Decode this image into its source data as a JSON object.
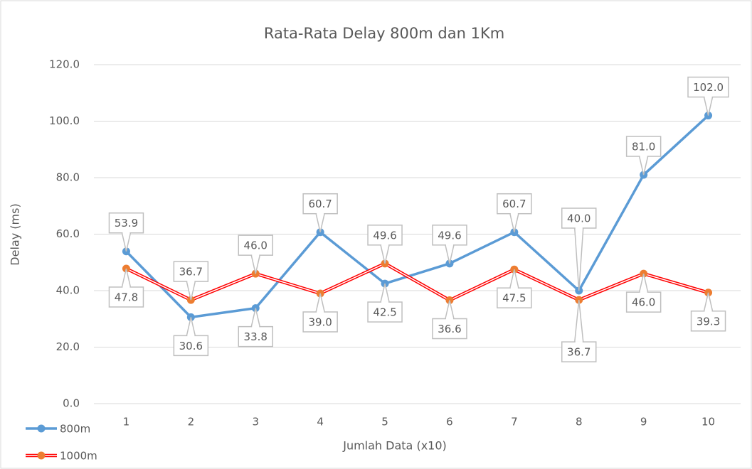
{
  "chart_data": {
    "type": "line",
    "title": "Rata-Rata Delay 800m dan 1Km",
    "x_label": "Jumlah Data (x10)",
    "y_label": "Delay (ms)",
    "categories": [
      "1",
      "2",
      "3",
      "4",
      "5",
      "6",
      "7",
      "8",
      "9",
      "10"
    ],
    "series": [
      {
        "name": "800m",
        "color": "#5b9bd5",
        "values": [
          53.9,
          30.6,
          33.8,
          60.7,
          42.5,
          49.6,
          60.7,
          40.0,
          81.0,
          102.0
        ],
        "value_labels": [
          "53.9",
          "30.6",
          "33.8",
          "60.7",
          "42.5",
          "49.6",
          "60.7",
          "40.0",
          "81.0",
          "102.0"
        ]
      },
      {
        "name": "1000m",
        "color": "#ff0000",
        "marker_color": "#ed7d31",
        "values": [
          47.8,
          36.7,
          46.0,
          39.0,
          49.6,
          36.6,
          47.5,
          36.7,
          46.0,
          39.3
        ],
        "value_labels": [
          "47.8",
          "36.7",
          "46.0",
          "39.0",
          "49.6",
          "36.6",
          "47.5",
          "36.7",
          "46.0",
          "39.3"
        ]
      }
    ],
    "ylim": [
      0,
      120
    ],
    "yticks": [
      {
        "value": 0,
        "label": "0.0"
      },
      {
        "value": 20,
        "label": "20.0"
      },
      {
        "value": 40,
        "label": "40.0"
      },
      {
        "value": 60,
        "label": "60.0"
      },
      {
        "value": 80,
        "label": "80.0"
      },
      {
        "value": 100,
        "label": "100.0"
      },
      {
        "value": 120,
        "label": "120.0"
      }
    ],
    "grid": true,
    "legend": "bottom-left"
  }
}
